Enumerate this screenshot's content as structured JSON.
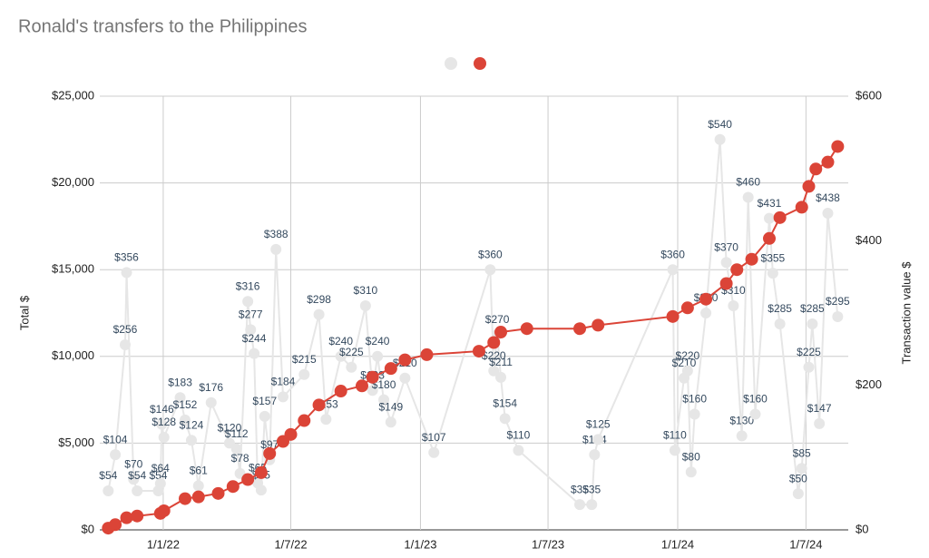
{
  "chart_data": {
    "type": "line",
    "title": "Ronald's transfers to the Philippines",
    "ylabel": "Total $",
    "y2label": "Transaction value $",
    "grid": true,
    "xlim": [
      "2021-10-03",
      "2024-08-30"
    ],
    "xticks": [
      {
        "value": "2022-01-01",
        "label": "1/1/22"
      },
      {
        "value": "2022-07-01",
        "label": "1/7/22"
      },
      {
        "value": "2023-01-01",
        "label": "1/1/23"
      },
      {
        "value": "2023-07-01",
        "label": "1/7/23"
      },
      {
        "value": "2024-01-01",
        "label": "1/1/24"
      },
      {
        "value": "2024-07-01",
        "label": "1/7/24"
      }
    ],
    "ylim": [
      0,
      25000
    ],
    "yticks": [
      {
        "value": 0,
        "label": "$0"
      },
      {
        "value": 5000,
        "label": "$5,000"
      },
      {
        "value": 10000,
        "label": "$10,000"
      },
      {
        "value": 15000,
        "label": "$15,000"
      },
      {
        "value": 20000,
        "label": "$20,000"
      },
      {
        "value": 25000,
        "label": "$25,000"
      }
    ],
    "y2lim": [
      0,
      600
    ],
    "y2ticks": [
      {
        "value": 0,
        "label": "$0"
      },
      {
        "value": 200,
        "label": "$200"
      },
      {
        "value": 400,
        "label": "$400"
      },
      {
        "value": 600,
        "label": "$600"
      }
    ],
    "series": [
      {
        "color": "#e6e6e6",
        "axis": "y2",
        "x": [
          "2021-10-15",
          "2021-10-25",
          "2021-11-08",
          "2021-11-10",
          "2021-11-20",
          "2021-11-25",
          "2021-12-25",
          "2021-12-28",
          "2021-12-30",
          "2022-01-02",
          "2022-01-25",
          "2022-02-01",
          "2022-02-10",
          "2022-02-20",
          "2022-03-10",
          "2022-04-05",
          "2022-04-15",
          "2022-04-20",
          "2022-05-01",
          "2022-05-05",
          "2022-05-10",
          "2022-05-15",
          "2022-05-20",
          "2022-05-25",
          "2022-06-01",
          "2022-06-10",
          "2022-06-20",
          "2022-07-20",
          "2022-08-10",
          "2022-08-20",
          "2022-09-10",
          "2022-09-25",
          "2022-10-15",
          "2022-10-25",
          "2022-11-01",
          "2022-11-10",
          "2022-11-20",
          "2022-12-10",
          "2023-01-20",
          "2023-04-10",
          "2023-04-15",
          "2023-04-20",
          "2023-04-25",
          "2023-05-01",
          "2023-05-20",
          "2023-08-15",
          "2023-09-01",
          "2023-09-05",
          "2023-09-10",
          "2023-12-25",
          "2023-12-28",
          "2024-01-10",
          "2024-01-15",
          "2024-01-20",
          "2024-01-25",
          "2024-02-10",
          "2024-03-01",
          "2024-03-10",
          "2024-03-20",
          "2024-04-01",
          "2024-04-10",
          "2024-04-20",
          "2024-05-10",
          "2024-05-15",
          "2024-05-25",
          "2024-06-20",
          "2024-06-25",
          "2024-07-05",
          "2024-07-10",
          "2024-07-20",
          "2024-08-01",
          "2024-08-15"
        ],
        "values": [
          54,
          104,
          256,
          356,
          70,
          54,
          54,
          64,
          146,
          128,
          183,
          152,
          124,
          61,
          176,
          120,
          112,
          78,
          316,
          277,
          244,
          65,
          55,
          157,
          97,
          388,
          184,
          215,
          298,
          153,
          240,
          225,
          310,
          193,
          240,
          180,
          149,
          210,
          107,
          360,
          220,
          270,
          211,
          154,
          110,
          35,
          35,
          104,
          125,
          360,
          110,
          210,
          220,
          80,
          160,
          300,
          540,
          370,
          310,
          130,
          460,
          160,
          431,
          355,
          285,
          50,
          85,
          225,
          285,
          147,
          438,
          295
        ],
        "value_labels": [
          "$54",
          "$104",
          "$256",
          "$356",
          "$70",
          "$54",
          "$54",
          "$64",
          "$146",
          "$128",
          "$183",
          "$152",
          "$124",
          "$61",
          "$176",
          "$120",
          "$112",
          "$78",
          "$316",
          "$277",
          "$244",
          "$65",
          "$55",
          "$157",
          "$97",
          "$388",
          "$184",
          "$215",
          "$298",
          "$153",
          "$240",
          "$225",
          "$310",
          "$193",
          "$240",
          "$180",
          "$149",
          "$210",
          "$107",
          "$360",
          "$220",
          "$270",
          "$211",
          "$154",
          "$110",
          "$35",
          "$35",
          "$104",
          "$125",
          "$360",
          "$110",
          "$210",
          "$220",
          "$80",
          "$160",
          "$300",
          "$540",
          "$370",
          "$310",
          "$130",
          "$460",
          "$160",
          "$431",
          "$355",
          "$285",
          "$50",
          "$85",
          "$225",
          "$285",
          "$147",
          "$438",
          "$295"
        ]
      },
      {
        "color": "#db4437",
        "x": [
          "2021-10-15",
          "2021-10-25",
          "2021-11-10",
          "2021-11-25",
          "2021-12-28",
          "2022-01-02",
          "2022-02-01",
          "2022-02-20",
          "2022-03-20",
          "2022-04-10",
          "2022-05-01",
          "2022-05-20",
          "2022-06-01",
          "2022-06-20",
          "2022-07-01",
          "2022-07-20",
          "2022-08-10",
          "2022-09-10",
          "2022-10-10",
          "2022-10-25",
          "2022-11-20",
          "2022-12-10",
          "2023-01-10",
          "2023-03-25",
          "2023-04-15",
          "2023-04-25",
          "2023-06-01",
          "2023-08-15",
          "2023-09-10",
          "2023-12-25",
          "2024-01-15",
          "2024-02-10",
          "2024-03-10",
          "2024-03-25",
          "2024-04-15",
          "2024-05-10",
          "2024-05-25",
          "2024-06-25",
          "2024-07-05",
          "2024-07-15",
          "2024-08-01",
          "2024-08-15"
        ],
        "values": [
          100,
          300,
          700,
          800,
          950,
          1100,
          1800,
          1900,
          2100,
          2500,
          2900,
          3300,
          4400,
          5100,
          5500,
          6300,
          7200,
          8000,
          8300,
          8800,
          9300,
          9800,
          10100,
          10300,
          10800,
          11400,
          11600,
          11600,
          11800,
          12300,
          12800,
          13300,
          14200,
          15000,
          15600,
          16800,
          18000,
          18600,
          19800,
          20800,
          21200,
          22100
        ]
      }
    ]
  }
}
